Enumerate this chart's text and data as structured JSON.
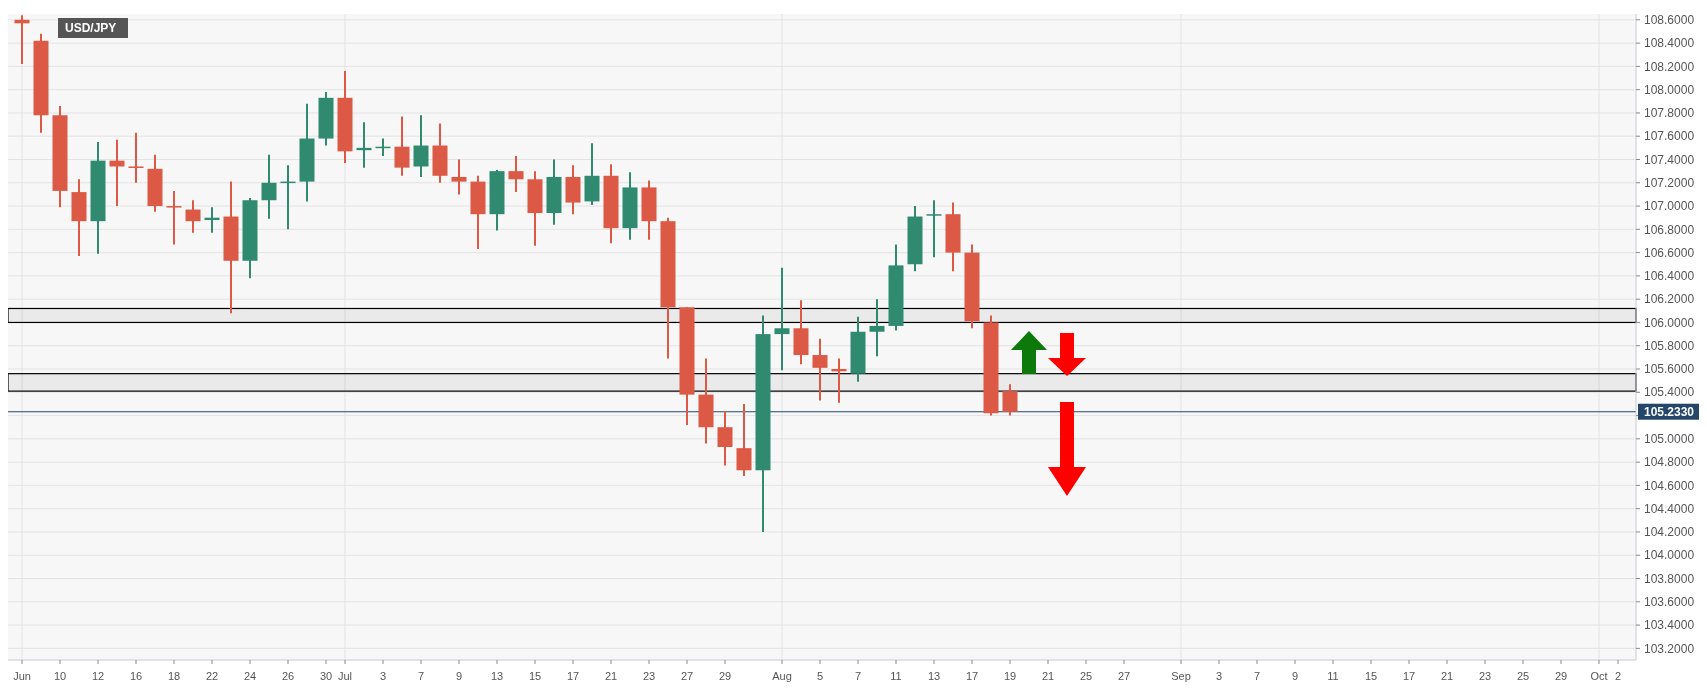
{
  "chart_data": {
    "type": "candlestick",
    "title": "USD/JPY",
    "categories": [
      "Jun",
      null,
      "10",
      null,
      "12",
      null,
      "16",
      null,
      "18",
      null,
      "22",
      null,
      "24",
      null,
      "26",
      null,
      "30",
      "Jul",
      null,
      "3",
      null,
      "7",
      null,
      "9",
      null,
      "13",
      null,
      "15",
      null,
      "17",
      null,
      "21",
      null,
      "23",
      null,
      "27",
      null,
      "29",
      null,
      null,
      "Aug",
      null,
      "5",
      null,
      "7",
      null,
      "11",
      null,
      "13",
      null,
      "17",
      null,
      "19",
      null,
      "21",
      null,
      "25",
      null,
      "27",
      null,
      null,
      "Sep",
      null,
      "3",
      null,
      "7",
      null,
      "9",
      null,
      "11",
      null,
      "15",
      null,
      "17",
      null,
      "21",
      null,
      "23",
      null,
      "25",
      null,
      "29",
      null,
      "Oct",
      "2"
    ],
    "ohlc": [
      [
        108.6,
        108.64,
        108.22,
        108.57
      ],
      [
        108.42,
        108.48,
        107.63,
        107.78
      ],
      [
        107.78,
        107.86,
        106.99,
        107.13
      ],
      [
        107.12,
        107.23,
        106.57,
        106.87
      ],
      [
        106.87,
        107.55,
        106.59,
        107.39
      ],
      [
        107.39,
        107.57,
        107.0,
        107.34
      ],
      [
        107.34,
        107.63,
        107.2,
        107.33
      ],
      [
        107.32,
        107.44,
        106.95,
        107.0
      ],
      [
        107.0,
        107.13,
        106.67,
        106.99
      ],
      [
        106.97,
        107.05,
        106.77,
        106.87
      ],
      [
        106.88,
        106.99,
        106.77,
        106.9
      ],
      [
        106.91,
        107.21,
        106.08,
        106.53
      ],
      [
        106.53,
        107.07,
        106.38,
        107.05
      ],
      [
        107.05,
        107.44,
        106.89,
        107.2
      ],
      [
        107.2,
        107.35,
        106.8,
        107.21
      ],
      [
        107.21,
        107.88,
        107.04,
        107.58
      ],
      [
        107.58,
        107.98,
        107.52,
        107.93
      ],
      [
        107.93,
        108.16,
        107.37,
        107.47
      ],
      [
        107.48,
        107.72,
        107.33,
        107.5
      ],
      [
        107.5,
        107.58,
        107.43,
        107.51
      ],
      [
        107.51,
        107.77,
        107.26,
        107.33
      ],
      [
        107.34,
        107.78,
        107.25,
        107.52
      ],
      [
        107.52,
        107.71,
        107.2,
        107.26
      ],
      [
        107.25,
        107.4,
        107.1,
        107.21
      ],
      [
        107.21,
        107.26,
        106.63,
        106.93
      ],
      [
        106.93,
        107.31,
        106.79,
        107.3
      ],
      [
        107.3,
        107.43,
        107.12,
        107.23
      ],
      [
        107.23,
        107.3,
        106.66,
        106.94
      ],
      [
        106.94,
        107.4,
        106.84,
        107.25
      ],
      [
        107.25,
        107.35,
        106.93,
        107.03
      ],
      [
        107.04,
        107.54,
        107.01,
        107.26
      ],
      [
        107.26,
        107.36,
        106.68,
        106.81
      ],
      [
        106.81,
        107.29,
        106.71,
        107.16
      ],
      [
        107.16,
        107.22,
        106.71,
        106.87
      ],
      [
        106.87,
        106.9,
        105.69,
        106.13
      ],
      [
        106.13,
        106.13,
        105.12,
        105.38
      ],
      [
        105.38,
        105.69,
        104.96,
        105.1
      ],
      [
        105.1,
        105.24,
        104.77,
        104.93
      ],
      [
        104.92,
        105.3,
        104.68,
        104.73
      ],
      [
        104.73,
        106.06,
        104.2,
        105.9
      ],
      [
        105.9,
        106.47,
        105.59,
        105.95
      ],
      [
        105.95,
        106.19,
        105.64,
        105.72
      ],
      [
        105.72,
        105.86,
        105.33,
        105.61
      ],
      [
        105.6,
        105.69,
        105.31,
        105.58
      ],
      [
        105.56,
        106.05,
        105.49,
        105.92
      ],
      [
        105.92,
        106.2,
        105.71,
        105.97
      ],
      [
        105.97,
        106.67,
        105.93,
        106.49
      ],
      [
        106.5,
        107.0,
        106.44,
        106.91
      ],
      [
        106.92,
        107.05,
        106.56,
        106.93
      ],
      [
        106.93,
        107.03,
        106.44,
        106.6
      ],
      [
        106.6,
        106.67,
        105.95,
        106.01
      ],
      [
        106.0,
        106.06,
        105.2,
        105.22
      ],
      [
        105.41,
        105.47,
        105.2,
        105.233
      ],
      null,
      null,
      null,
      null,
      null,
      null,
      null,
      null,
      null,
      null,
      null,
      null,
      null,
      null,
      null,
      null,
      null,
      null,
      null,
      null,
      null,
      null,
      null,
      null,
      null,
      null,
      null,
      null,
      null,
      null,
      null,
      null
    ],
    "colors": [
      "#dc5a45",
      "#dc5a45",
      "#dc5a45",
      "#dc5a45",
      "#2f8a6f",
      "#dc5a45",
      "#dc5a45",
      "#dc5a45",
      "#dc5a45",
      "#dc5a45",
      "#2f8a6f",
      "#dc5a45",
      "#2f8a6f",
      "#2f8a6f",
      "#2f8a6f",
      "#2f8a6f",
      "#2f8a6f",
      "#dc5a45",
      "#2f8a6f",
      "#2f8a6f",
      "#dc5a45",
      "#2f8a6f",
      "#dc5a45",
      "#dc5a45",
      "#dc5a45",
      "#2f8a6f",
      "#dc5a45",
      "#dc5a45",
      "#2f8a6f",
      "#dc5a45",
      "#2f8a6f",
      "#dc5a45",
      "#2f8a6f",
      "#dc5a45",
      "#dc5a45",
      "#dc5a45",
      "#dc5a45",
      "#dc5a45",
      "#dc5a45",
      "#2f8a6f",
      "#2f8a6f",
      "#dc5a45",
      "#dc5a45",
      "#dc5a45",
      "#2f8a6f",
      "#2f8a6f",
      "#2f8a6f",
      "#2f8a6f",
      "#2f8a6f",
      "#dc5a45",
      "#dc5a45",
      "#dc5a45",
      "#dc5a45",
      null,
      null,
      null,
      null,
      null,
      null,
      null,
      null,
      null,
      null,
      null,
      null,
      null,
      null,
      null,
      null,
      null,
      null,
      null,
      null,
      null,
      null,
      null,
      null,
      null,
      null,
      null,
      null,
      null,
      null,
      null,
      null
    ],
    "ylim": [
      103.1,
      108.65
    ],
    "yticks": [
      {
        "value": 103.2,
        "label": "103.2000"
      },
      {
        "value": 103.4,
        "label": "103.4000"
      },
      {
        "value": 103.6,
        "label": "103.6000"
      },
      {
        "value": 103.8,
        "label": "103.8000"
      },
      {
        "value": 104.0,
        "label": "104.0000"
      },
      {
        "value": 104.2,
        "label": "104.2000"
      },
      {
        "value": 104.4,
        "label": "104.4000"
      },
      {
        "value": 104.6,
        "label": "104.6000"
      },
      {
        "value": 104.8,
        "label": "104.8000"
      },
      {
        "value": 105.0,
        "label": "105.0000"
      },
      {
        "value": 105.2,
        "label": null
      },
      {
        "value": 105.4,
        "label": "105.4000"
      },
      {
        "value": 105.6,
        "label": "105.6000"
      },
      {
        "value": 105.8,
        "label": "105.8000"
      },
      {
        "value": 106.0,
        "label": "106.0000"
      },
      {
        "value": 106.2,
        "label": "106.2000"
      },
      {
        "value": 106.4,
        "label": "106.4000"
      },
      {
        "value": 106.6,
        "label": "106.6000"
      },
      {
        "value": 106.8,
        "label": "106.8000"
      },
      {
        "value": 107.0,
        "label": "107.0000"
      },
      {
        "value": 107.2,
        "label": "107.2000"
      },
      {
        "value": 107.4,
        "label": "107.4000"
      },
      {
        "value": 107.6,
        "label": "107.6000"
      },
      {
        "value": 107.8,
        "label": "107.8000"
      },
      {
        "value": 108.0,
        "label": "108.0000"
      },
      {
        "value": 108.2,
        "label": "108.2000"
      },
      {
        "value": 108.4,
        "label": "108.4000"
      },
      {
        "value": 108.6,
        "label": "108.6000"
      }
    ],
    "grid": true,
    "ref_lines": [
      {
        "axis": "y",
        "value": 105.233,
        "label": "105.2330",
        "color": "#24466b"
      }
    ],
    "bands": [
      {
        "axis": "y",
        "from": 106.0,
        "to": 106.12,
        "color": "#000000"
      },
      {
        "axis": "y",
        "from": 105.41,
        "to": 105.56,
        "color": "#000000"
      }
    ]
  }
}
